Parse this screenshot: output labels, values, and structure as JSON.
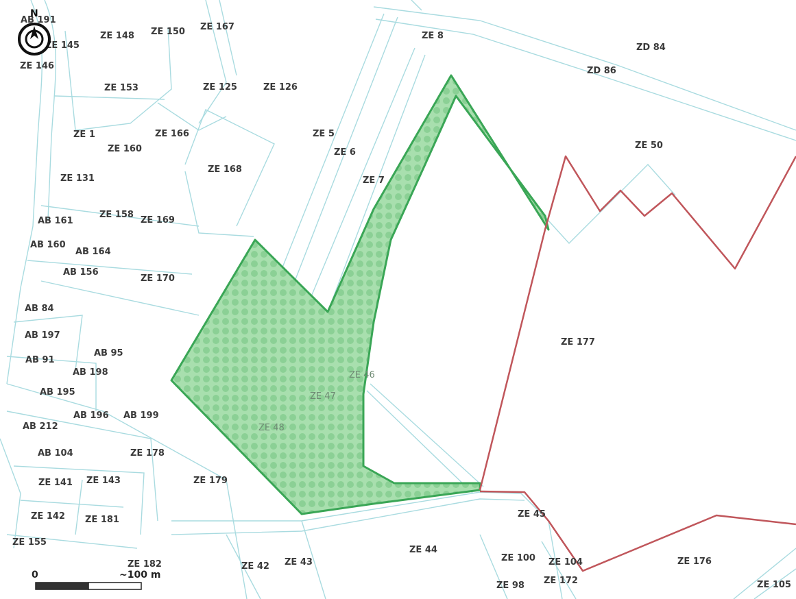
{
  "colors": {
    "parcel_line": "#a9dbe0",
    "selected_fill": "#8fd49a",
    "selected_stroke": "#3aa656",
    "boundary_red": "#c0565b",
    "label": "#3a3a3a"
  },
  "north_arrow": {
    "letter": "N"
  },
  "scale_bar": {
    "start_label": "0",
    "end_label": "~100 m"
  },
  "parcels": [
    {
      "id": "ab191",
      "label": "AB 191"
    },
    {
      "id": "ze145",
      "label": "ZE 145"
    },
    {
      "id": "ze146",
      "label": "ZE 146"
    },
    {
      "id": "ze148",
      "label": "ZE 148"
    },
    {
      "id": "ze150",
      "label": "ZE 150"
    },
    {
      "id": "ze167",
      "label": "ZE 167"
    },
    {
      "id": "ze8",
      "label": "ZE 8"
    },
    {
      "id": "zd84",
      "label": "ZD 84"
    },
    {
      "id": "zd86",
      "label": "ZD 86"
    },
    {
      "id": "ze153",
      "label": "ZE 153"
    },
    {
      "id": "ze125",
      "label": "ZE 125"
    },
    {
      "id": "ze126",
      "label": "ZE 126"
    },
    {
      "id": "ze1",
      "label": "ZE 1"
    },
    {
      "id": "ze166",
      "label": "ZE 166"
    },
    {
      "id": "ze160",
      "label": "ZE 160"
    },
    {
      "id": "ze5",
      "label": "ZE 5"
    },
    {
      "id": "ze6",
      "label": "ZE 6"
    },
    {
      "id": "ze50",
      "label": "ZE 50"
    },
    {
      "id": "ze131",
      "label": "ZE 131"
    },
    {
      "id": "ze168",
      "label": "ZE 168"
    },
    {
      "id": "ze7",
      "label": "ZE 7"
    },
    {
      "id": "ab161",
      "label": "AB 161"
    },
    {
      "id": "ze158",
      "label": "ZE 158"
    },
    {
      "id": "ze169",
      "label": "ZE 169"
    },
    {
      "id": "ab160",
      "label": "AB 160"
    },
    {
      "id": "ab164",
      "label": "AB 164"
    },
    {
      "id": "ab156",
      "label": "AB 156"
    },
    {
      "id": "ze170",
      "label": "ZE 170"
    },
    {
      "id": "ab84",
      "label": "AB 84"
    },
    {
      "id": "ze177",
      "label": "ZE 177"
    },
    {
      "id": "ab197",
      "label": "AB 197"
    },
    {
      "id": "ab91",
      "label": "AB 91"
    },
    {
      "id": "ab95",
      "label": "AB 95"
    },
    {
      "id": "ab198",
      "label": "AB 198"
    },
    {
      "id": "ze46",
      "label": "ZE 46"
    },
    {
      "id": "ab195",
      "label": "AB 195"
    },
    {
      "id": "ze47",
      "label": "ZE 47"
    },
    {
      "id": "ab196",
      "label": "AB 196"
    },
    {
      "id": "ab199",
      "label": "AB 199"
    },
    {
      "id": "ab212",
      "label": "AB 212"
    },
    {
      "id": "ze48",
      "label": "ZE 48"
    },
    {
      "id": "ab104",
      "label": "AB 104"
    },
    {
      "id": "ze178",
      "label": "ZE 178"
    },
    {
      "id": "ze141",
      "label": "ZE 141"
    },
    {
      "id": "ze143",
      "label": "ZE 143"
    },
    {
      "id": "ze179",
      "label": "ZE 179"
    },
    {
      "id": "ze45",
      "label": "ZE 45"
    },
    {
      "id": "ze142",
      "label": "ZE 142"
    },
    {
      "id": "ze181",
      "label": "ZE 181"
    },
    {
      "id": "ze155",
      "label": "ZE 155"
    },
    {
      "id": "ze44",
      "label": "ZE 44"
    },
    {
      "id": "ze182",
      "label": "ZE 182"
    },
    {
      "id": "ze42",
      "label": "ZE 42"
    },
    {
      "id": "ze43",
      "label": "ZE 43"
    },
    {
      "id": "ze100",
      "label": "ZE 100"
    },
    {
      "id": "ze104",
      "label": "ZE 104"
    },
    {
      "id": "ze176",
      "label": "ZE 176"
    },
    {
      "id": "ze98",
      "label": "ZE 98"
    },
    {
      "id": "ze172",
      "label": "ZE 172"
    },
    {
      "id": "ze105",
      "label": "ZE 105"
    }
  ]
}
